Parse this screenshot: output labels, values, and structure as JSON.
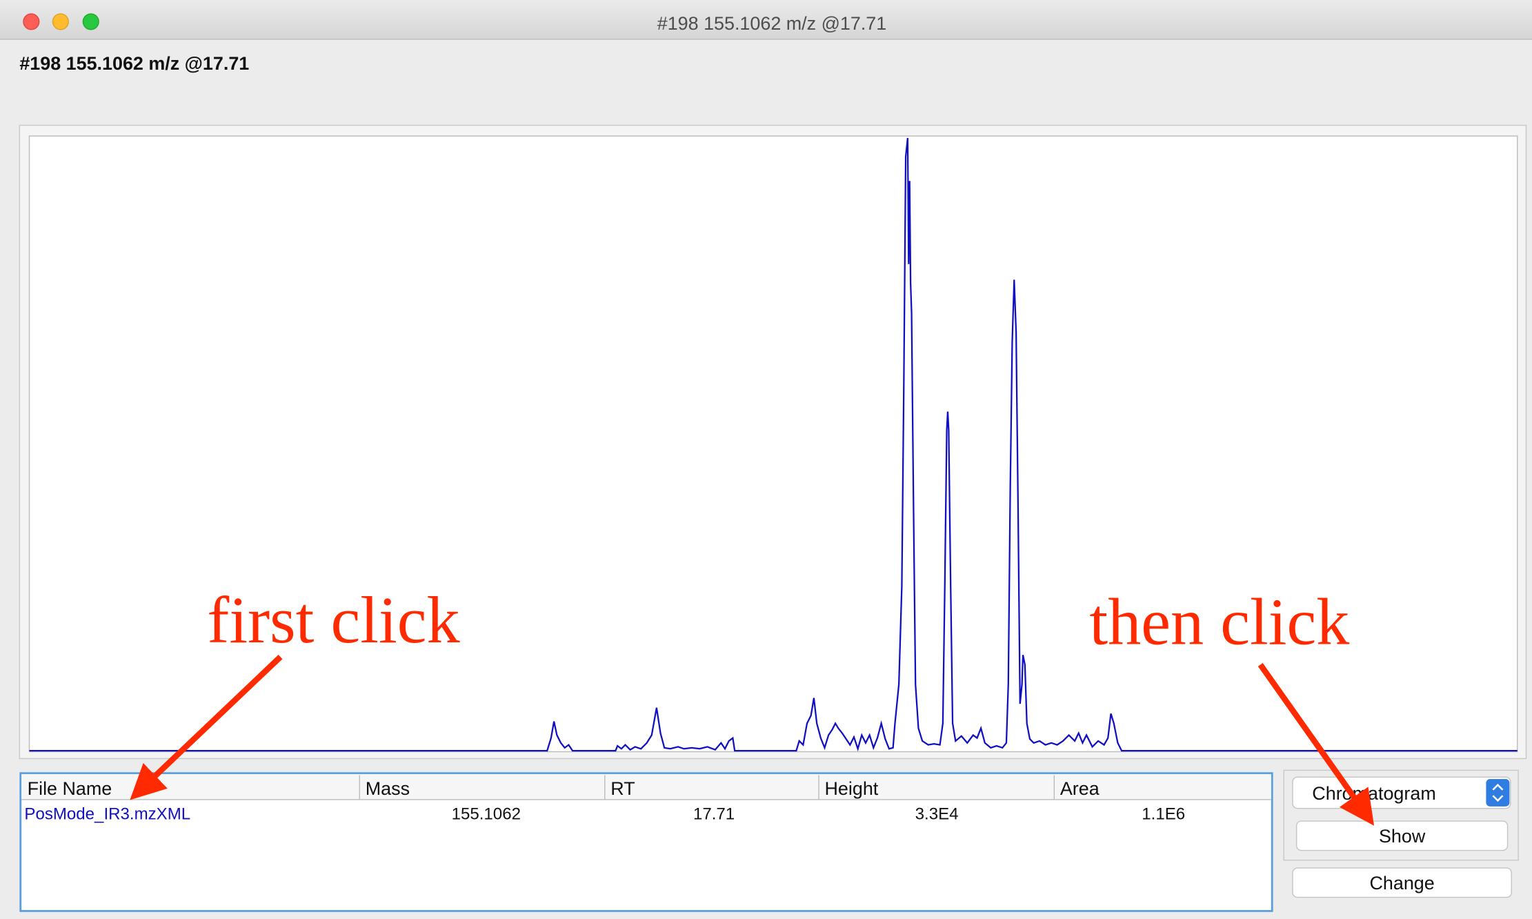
{
  "window": {
    "title": "#198 155.1062 m/z @17.71"
  },
  "header": {
    "title": "#198 155.1062 m/z @17.71"
  },
  "table": {
    "columns": [
      "File Name",
      "Mass",
      "RT",
      "Height",
      "Area"
    ],
    "rows": [
      [
        "PosMode_IR3.mzXML",
        "155.1062",
        "17.71",
        "3.3E4",
        "1.1E6"
      ]
    ]
  },
  "controls": {
    "dropdown": "Chromatogram",
    "show": "Show",
    "change": "Change"
  },
  "annotations": {
    "first": "first click",
    "then": "then click"
  }
}
